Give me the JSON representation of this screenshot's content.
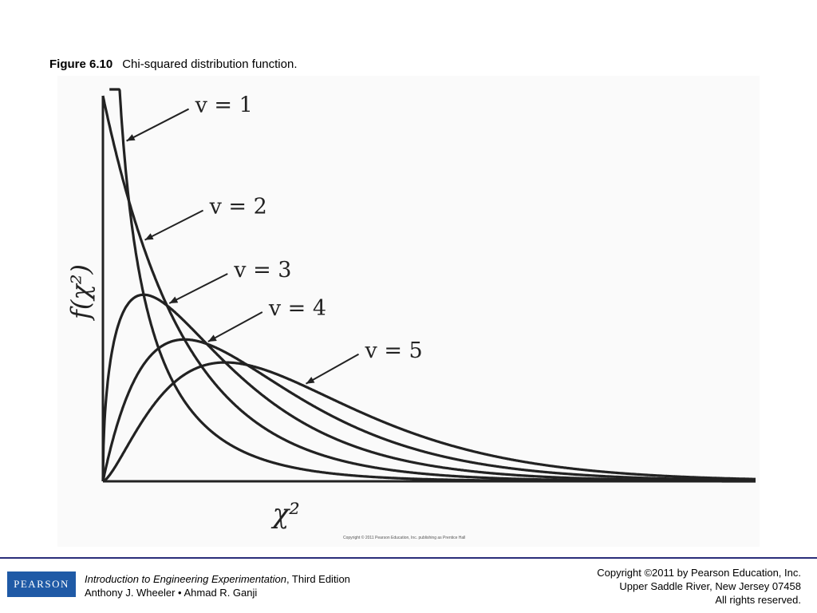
{
  "caption": {
    "figure_label": "Figure 6.10",
    "text": "Chi-squared distribution function."
  },
  "chart_data": {
    "type": "line",
    "title": "",
    "xlabel": "χ²",
    "ylabel": "f(χ²)",
    "xlim": [
      0,
      16
    ],
    "ylim": [
      0,
      0.5
    ],
    "grid": false,
    "legend": "none (series labelled with arrows)",
    "series": [
      {
        "name": "v = 1",
        "x": [
          0.3,
          0.5,
          0.75,
          1,
          1.5,
          2,
          2.5,
          3,
          4,
          5,
          6,
          8,
          10,
          12,
          14,
          16
        ],
        "y": [
          0.6266,
          0.4394,
          0.3255,
          0.242,
          0.1542,
          0.1038,
          0.0723,
          0.0514,
          0.027,
          0.0146,
          0.0081,
          0.0026,
          0.0009,
          0.0003,
          0.0001,
          3e-05
        ]
      },
      {
        "name": "v = 2",
        "x": [
          0,
          0.5,
          1,
          1.5,
          2,
          2.5,
          3,
          4,
          5,
          6,
          8,
          10,
          12,
          14,
          16
        ],
        "y": [
          0.5,
          0.3894,
          0.3033,
          0.2362,
          0.1839,
          0.1433,
          0.1116,
          0.0677,
          0.041,
          0.0249,
          0.0092,
          0.0034,
          0.0012,
          0.0005,
          0.0002
        ]
      },
      {
        "name": "v = 3",
        "x": [
          0,
          0.25,
          0.5,
          1,
          1.5,
          2,
          3,
          4,
          5,
          6,
          7,
          8,
          10,
          12,
          14,
          16
        ],
        "y": [
          0,
          0.1759,
          0.2197,
          0.242,
          0.2313,
          0.2076,
          0.1542,
          0.1079,
          0.0733,
          0.0488,
          0.032,
          0.0209,
          0.0085,
          0.0034,
          0.0013,
          0.0005
        ]
      },
      {
        "name": "v = 4",
        "x": [
          0,
          0.5,
          1,
          1.5,
          2,
          3,
          4,
          5,
          6,
          7,
          8,
          10,
          12,
          14,
          16
        ],
        "y": [
          0,
          0.0974,
          0.1516,
          0.1771,
          0.1839,
          0.1673,
          0.1353,
          0.1026,
          0.0747,
          0.0528,
          0.0366,
          0.0168,
          0.0074,
          0.0032,
          0.0013
        ]
      },
      {
        "name": "v = 5",
        "x": [
          0,
          0.5,
          1,
          1.5,
          2,
          3,
          4,
          5,
          6,
          7,
          8,
          9,
          10,
          12,
          14,
          16
        ],
        "y": [
          0,
          0.0436,
          0.0807,
          0.1089,
          0.1283,
          0.1542,
          0.1465,
          0.1221,
          0.0952,
          0.0711,
          0.0514,
          0.0363,
          0.0253,
          0.0118,
          0.0053,
          0.0023
        ]
      }
    ]
  },
  "credit": "Copyright © 2011 Pearson Education, Inc. publishing as Prentice Hall",
  "footer": {
    "logo_text": "PEARSON",
    "book_title": "Introduction to Engineering Experimentation",
    "edition": ", Third Edition",
    "authors": "Anthony J. Wheeler • Ahmad R. Ganji",
    "copyright_line1": "Copyright ©2011 by Pearson Education, Inc.",
    "copyright_line2": "Upper Saddle River, New Jersey 07458",
    "copyright_line3": "All rights reserved."
  },
  "colors": {
    "curve": "#222222",
    "footer_rule": "#2a2d7a",
    "logo_bg": "#1f5aa6"
  }
}
